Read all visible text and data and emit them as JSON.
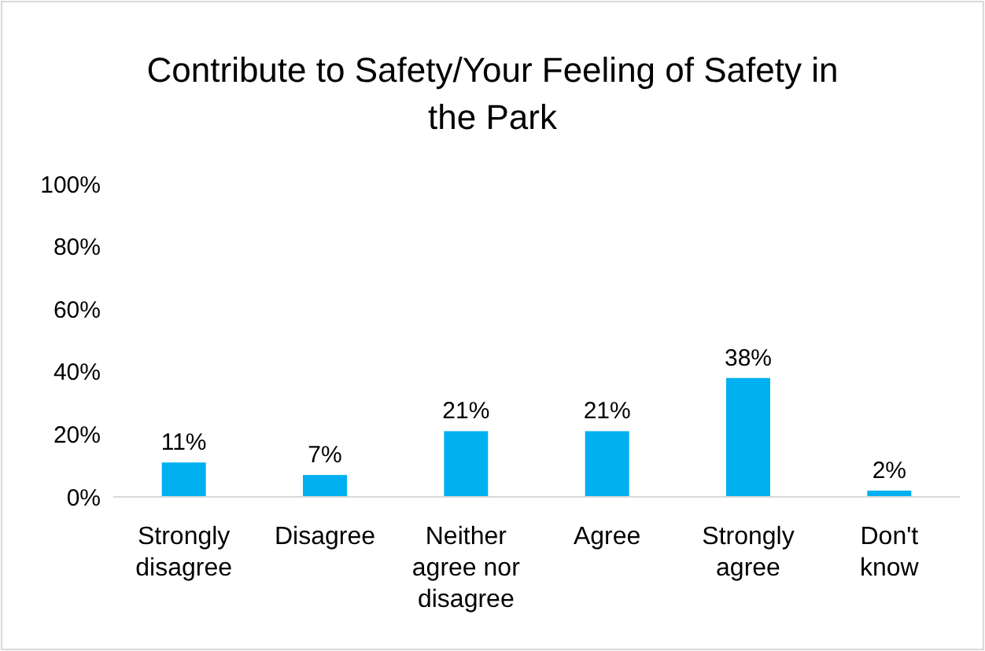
{
  "chart_data": {
    "type": "bar",
    "title": "Contribute to Safety/Your Feeling of Safety in the Park",
    "categories": [
      "Strongly disagree",
      "Disagree",
      "Neither agree nor disagree",
      "Agree",
      "Strongly agree",
      "Don't know"
    ],
    "values": [
      11,
      7,
      21,
      21,
      38,
      2
    ],
    "value_labels": [
      "11%",
      "7%",
      "21%",
      "21%",
      "38%",
      "2%"
    ],
    "color": "#00b0f0",
    "ylim": [
      0,
      100
    ],
    "yticks": [
      {
        "value": 0,
        "label": "0%"
      },
      {
        "value": 20,
        "label": "20%"
      },
      {
        "value": 40,
        "label": "40%"
      },
      {
        "value": 60,
        "label": "60%"
      },
      {
        "value": 80,
        "label": "80%"
      },
      {
        "value": 100,
        "label": "100%"
      }
    ],
    "grid": false
  }
}
